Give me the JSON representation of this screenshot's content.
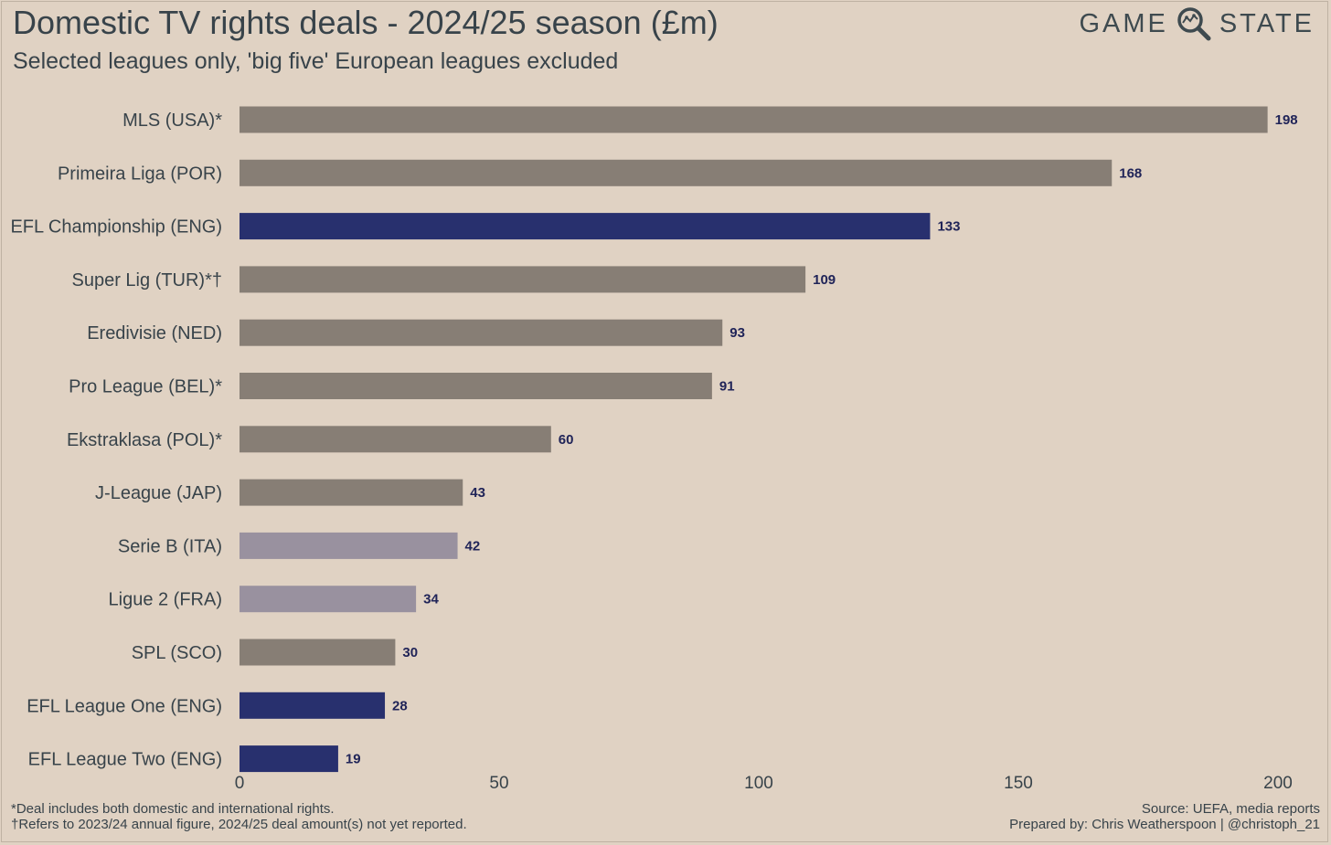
{
  "header": {
    "title": "Domestic TV rights deals - 2024/25 season (£m)",
    "subtitle": "Selected leagues only, 'big five' European leagues excluded",
    "logo_left": "GAME",
    "logo_right": "STATE",
    "logo_icon": "magnifier-icon"
  },
  "chart_data": {
    "type": "bar",
    "orientation": "horizontal",
    "title": "Domestic TV rights deals - 2024/25 season (£m)",
    "subtitle": "Selected leagues only, 'big five' European leagues excluded",
    "categories": [
      "MLS (USA)*",
      "Primeira Liga (POR)",
      "EFL Championship (ENG)",
      "Super Lig (TUR)*†",
      "Eredivisie (NED)",
      "Pro League (BEL)*",
      "Ekstraklasa (POL)*",
      "J-League (JAP)",
      "Serie B (ITA)",
      "Ligue 2 (FRA)",
      "SPL (SCO)",
      "EFL League One (ENG)",
      "EFL League Two (ENG)"
    ],
    "values": [
      198,
      168,
      133,
      109,
      93,
      91,
      60,
      43,
      42,
      34,
      30,
      28,
      19
    ],
    "bar_colors": [
      "#877e75",
      "#877e75",
      "#28306e",
      "#877e75",
      "#877e75",
      "#877e75",
      "#877e75",
      "#877e75",
      "#99919f",
      "#99919f",
      "#877e75",
      "#28306e",
      "#28306e"
    ],
    "xlim": [
      0,
      200
    ],
    "xticks": [
      0,
      50,
      100,
      150,
      200
    ],
    "grid": false,
    "xlabel": "",
    "ylabel": ""
  },
  "colors": {
    "background": "#e0d2c3",
    "text": "#38434a",
    "value_label": "#202458"
  },
  "footer": {
    "note1": "*Deal includes both domestic and international rights.",
    "note2": "†Refers to 2023/24 annual figure, 2024/25 deal amount(s) not yet reported.",
    "source": "Source: UEFA, media reports",
    "credit": "Prepared by: Chris Weatherspoon | @christoph_21"
  }
}
